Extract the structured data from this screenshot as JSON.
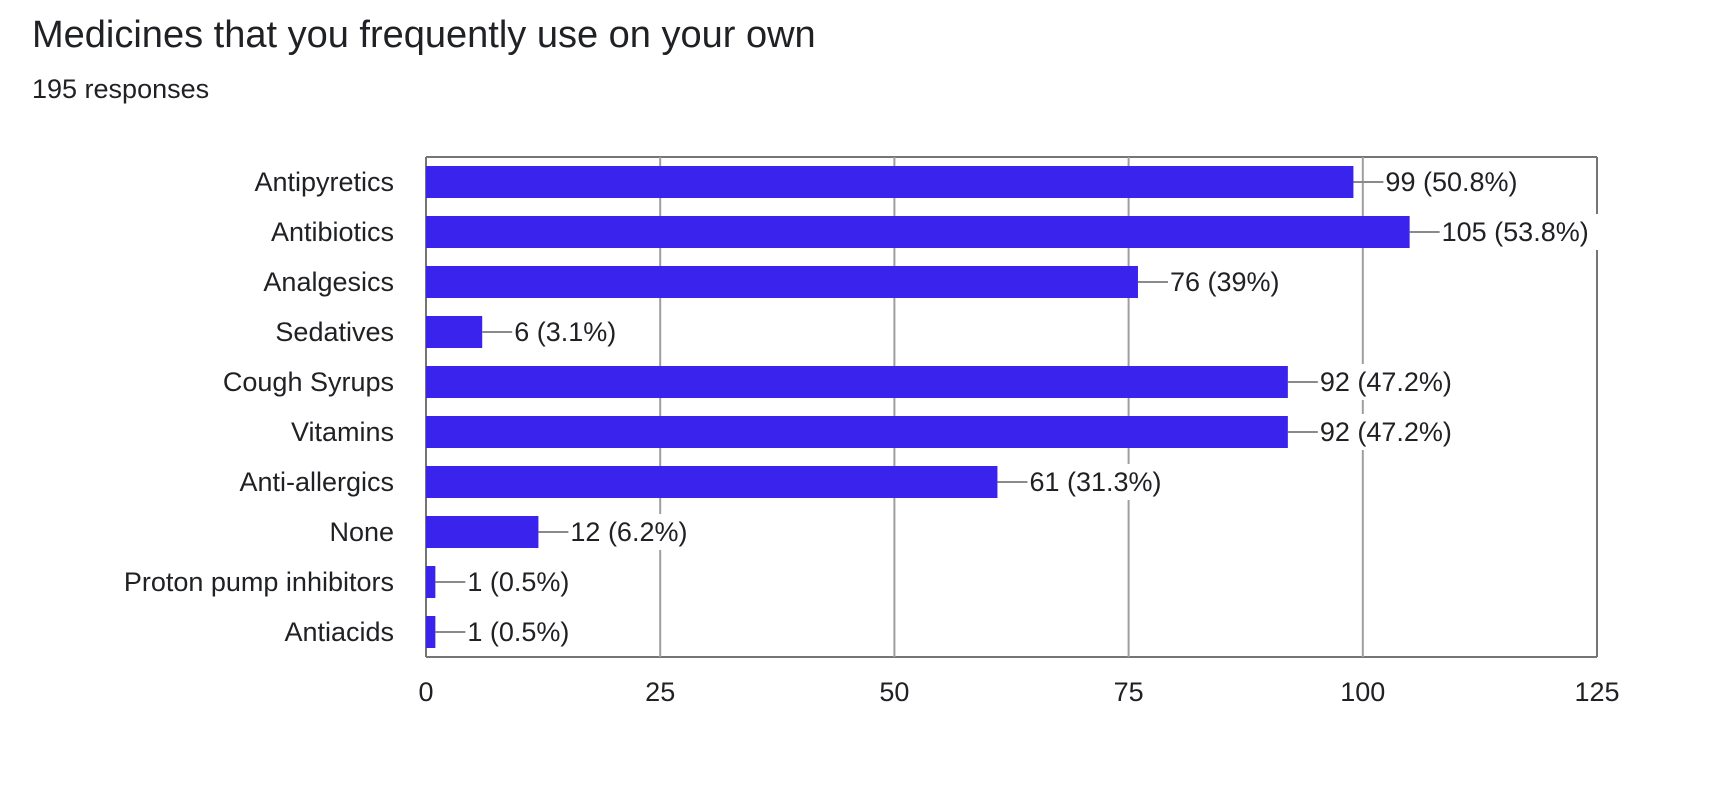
{
  "header": {
    "title": "Medicines that you frequently use on your own",
    "responses": "195 responses"
  },
  "colors": {
    "bar": "#3b23ee",
    "grid": "#9e9e9e",
    "text": "#202124",
    "leader": "#8a8a8a"
  },
  "chart_data": {
    "type": "bar",
    "orientation": "horizontal",
    "categories": [
      "Antipyretics",
      "Antibiotics",
      "Analgesics",
      "Sedatives",
      "Cough Syrups",
      "Vitamins",
      "Anti-allergics",
      "None",
      "Proton pump inhibitors",
      "Antiacids"
    ],
    "values": [
      99,
      105,
      76,
      6,
      92,
      92,
      61,
      12,
      1,
      1
    ],
    "data_labels": [
      "99 (50.8%)",
      "105 (53.8%)",
      "76 (39%)",
      "6 (3.1%)",
      "92 (47.2%)",
      "92 (47.2%)",
      "61 (31.3%)",
      "12 (6.2%)",
      "1 (0.5%)",
      "1 (0.5%)"
    ],
    "xlim": [
      0,
      125
    ],
    "xticks": [
      "0",
      "25",
      "50",
      "75",
      "100",
      "125"
    ],
    "grid": true
  }
}
